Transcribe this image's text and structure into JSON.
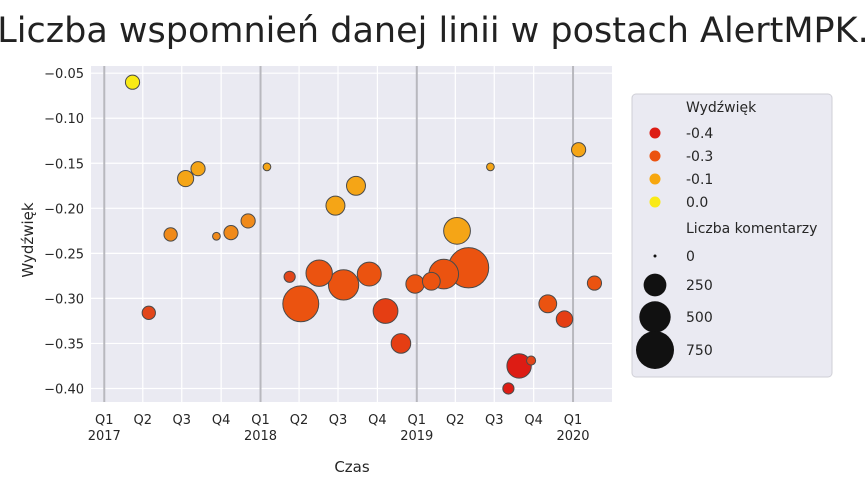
{
  "chart_data": {
    "type": "scatter",
    "title": "Liczba wspomnień danej linii w postach AlertMPK.",
    "xlabel": "Czas",
    "ylabel": "Wydźwięk",
    "ylim": [
      -0.415,
      -0.042
    ],
    "xlim": [
      "2016-12-01",
      "2020-04-01"
    ],
    "y_ticks": [
      -0.05,
      -0.1,
      -0.15,
      -0.2,
      -0.25,
      -0.3,
      -0.35,
      -0.4
    ],
    "x_ticks": [
      {
        "line1": "Q1",
        "line2": "2017",
        "date": "2017-01-01"
      },
      {
        "line1": "Q2",
        "line2": "",
        "date": "2017-04-01"
      },
      {
        "line1": "Q3",
        "line2": "",
        "date": "2017-07-01"
      },
      {
        "line1": "Q4",
        "line2": "",
        "date": "2017-10-01"
      },
      {
        "line1": "Q1",
        "line2": "2018",
        "date": "2018-01-01"
      },
      {
        "line1": "Q2",
        "line2": "",
        "date": "2018-04-01"
      },
      {
        "line1": "Q3",
        "line2": "",
        "date": "2018-07-01"
      },
      {
        "line1": "Q4",
        "line2": "",
        "date": "2018-10-01"
      },
      {
        "line1": "Q1",
        "line2": "2019",
        "date": "2019-01-01"
      },
      {
        "line1": "Q2",
        "line2": "",
        "date": "2019-04-01"
      },
      {
        "line1": "Q3",
        "line2": "",
        "date": "2019-07-01"
      },
      {
        "line1": "Q4",
        "line2": "",
        "date": "2019-10-01"
      },
      {
        "line1": "Q1",
        "line2": "2020",
        "date": "2020-01-01"
      }
    ],
    "year_lines": [
      "2017-01-01",
      "2018-01-01",
      "2019-01-01",
      "2020-01-01"
    ],
    "grid": true,
    "legend_position": "right",
    "hue_title": "Wydźwięk",
    "size_title": "Liczba komentarzy",
    "hue_legend": [
      {
        "label": "-0.4",
        "color": "#dd1c14"
      },
      {
        "label": "-0.3",
        "color": "#eb5310"
      },
      {
        "label": "-0.1",
        "color": "#f7a70f"
      },
      {
        "label": "0.0",
        "color": "#f9ea16"
      }
    ],
    "size_legend": [
      {
        "label": "0",
        "value": 0
      },
      {
        "label": "250",
        "value": 250
      },
      {
        "label": "500",
        "value": 500
      },
      {
        "label": "750",
        "value": 750
      }
    ],
    "points": [
      {
        "x": "2017-03-08",
        "y": -0.06,
        "comments": 60,
        "color": "#f9ea16"
      },
      {
        "x": "2017-04-15",
        "y": -0.316,
        "comments": 50,
        "color": "#e2461a"
      },
      {
        "x": "2017-06-05",
        "y": -0.229,
        "comments": 50,
        "color": "#f08a1a"
      },
      {
        "x": "2017-07-10",
        "y": -0.167,
        "comments": 85,
        "color": "#f5a516"
      },
      {
        "x": "2017-08-08",
        "y": -0.156,
        "comments": 60,
        "color": "#f5a516"
      },
      {
        "x": "2017-09-20",
        "y": -0.231,
        "comments": 8,
        "color": "#f08a1a"
      },
      {
        "x": "2017-10-24",
        "y": -0.227,
        "comments": 60,
        "color": "#f08a1a"
      },
      {
        "x": "2017-12-03",
        "y": -0.214,
        "comments": 60,
        "color": "#f08a1a"
      },
      {
        "x": "2018-01-16",
        "y": -0.154,
        "comments": 8,
        "color": "#f5a516"
      },
      {
        "x": "2018-03-10",
        "y": -0.276,
        "comments": 30,
        "color": "#e2461a"
      },
      {
        "x": "2018-04-05",
        "y": -0.306,
        "comments": 590,
        "color": "#eb5310"
      },
      {
        "x": "2018-05-18",
        "y": -0.272,
        "comments": 290,
        "color": "#eb5310"
      },
      {
        "x": "2018-06-25",
        "y": -0.197,
        "comments": 130,
        "color": "#f5a516"
      },
      {
        "x": "2018-07-14",
        "y": -0.285,
        "comments": 400,
        "color": "#eb5310"
      },
      {
        "x": "2018-08-12",
        "y": -0.175,
        "comments": 130,
        "color": "#f5a516"
      },
      {
        "x": "2018-09-12",
        "y": -0.273,
        "comments": 230,
        "color": "#eb5310"
      },
      {
        "x": "2018-10-20",
        "y": -0.314,
        "comments": 250,
        "color": "#e53e13"
      },
      {
        "x": "2018-11-25",
        "y": -0.35,
        "comments": 140,
        "color": "#e53e13"
      },
      {
        "x": "2018-12-28",
        "y": -0.284,
        "comments": 120,
        "color": "#eb5310"
      },
      {
        "x": "2019-02-04",
        "y": -0.281,
        "comments": 110,
        "color": "#eb5310"
      },
      {
        "x": "2019-03-05",
        "y": -0.273,
        "comments": 380,
        "color": "#eb5310"
      },
      {
        "x": "2019-04-05",
        "y": -0.225,
        "comments": 300,
        "color": "#f5a516"
      },
      {
        "x": "2019-05-02",
        "y": -0.266,
        "comments": 760,
        "color": "#eb5310"
      },
      {
        "x": "2019-06-22",
        "y": -0.154,
        "comments": 8,
        "color": "#f5a516"
      },
      {
        "x": "2019-08-03",
        "y": -0.4,
        "comments": 30,
        "color": "#dd1c14"
      },
      {
        "x": "2019-08-28",
        "y": -0.375,
        "comments": 240,
        "color": "#dd1c14"
      },
      {
        "x": "2019-09-25",
        "y": -0.369,
        "comments": 15,
        "color": "#e2461a"
      },
      {
        "x": "2019-11-03",
        "y": -0.306,
        "comments": 110,
        "color": "#eb5310"
      },
      {
        "x": "2019-12-12",
        "y": -0.323,
        "comments": 90,
        "color": "#e53e13"
      },
      {
        "x": "2020-01-14",
        "y": -0.135,
        "comments": 60,
        "color": "#f5a516"
      },
      {
        "x": "2020-02-20",
        "y": -0.283,
        "comments": 60,
        "color": "#eb5310"
      }
    ]
  }
}
